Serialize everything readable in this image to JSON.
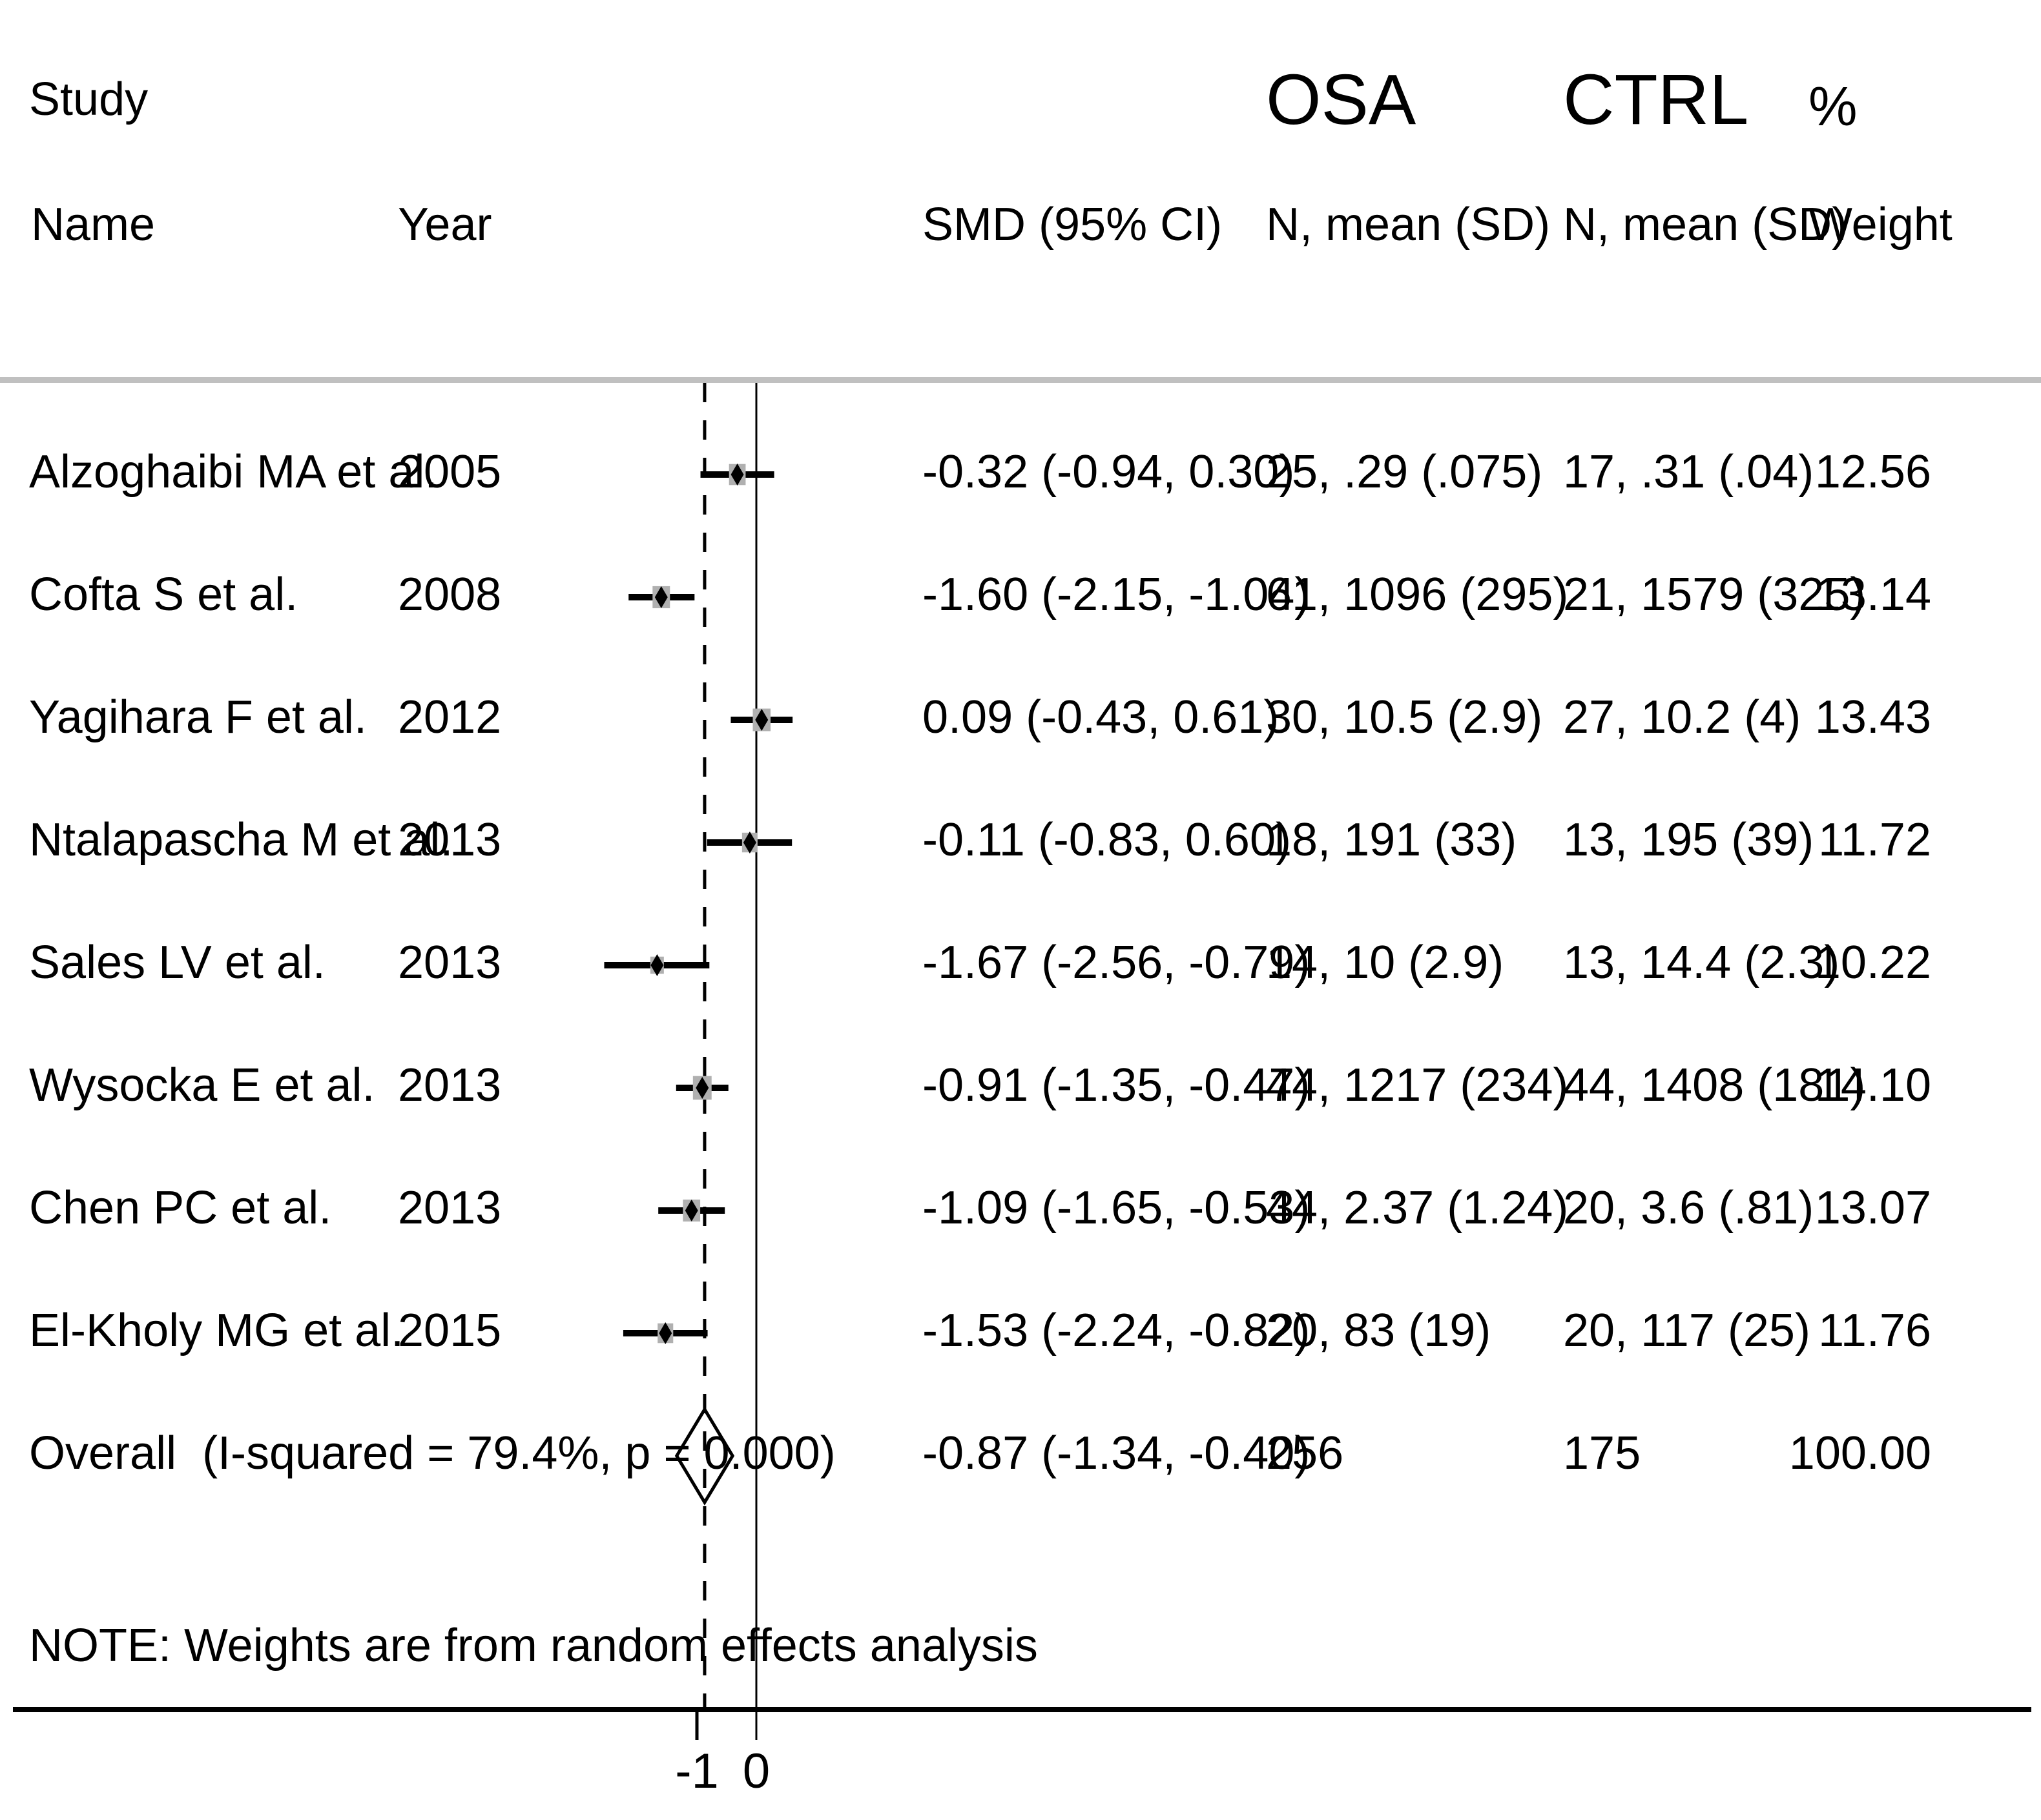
{
  "figure": {
    "headers": {
      "study": "Study",
      "name": "Name",
      "year": "Year",
      "smd": "SMD (95% CI)",
      "osa_group": "OSA",
      "ctrl_group": "CTRL",
      "osa_sub": "N, mean (SD)",
      "ctrl_sub": "N, mean (SD)",
      "pct": "%",
      "weight": "Weight"
    },
    "note": "NOTE: Weights are from random effects analysis"
  },
  "chart_data": {
    "type": "forest",
    "title": "",
    "effect_measure": "SMD (95% CI)",
    "x_axis": {
      "tick_values": [
        -1,
        0
      ],
      "tick_labels": [
        "-1",
        "0"
      ],
      "zero_line": 0,
      "overall_dashed_line": -0.87
    },
    "legend_position": "none",
    "grid": false,
    "studies": [
      {
        "name": "Alzoghaibi MA et al.",
        "year": "2005",
        "smd": -0.32,
        "ci_low": -0.94,
        "ci_high": 0.3,
        "smd_label": "-0.32 (-0.94, 0.30)",
        "osa": "25, .29 (.075)",
        "ctrl": "17, .31 (.04)",
        "weight": 12.56,
        "weight_label": "12.56"
      },
      {
        "name": "Cofta S et al.",
        "year": "2008",
        "smd": -1.6,
        "ci_low": -2.15,
        "ci_high": -1.04,
        "smd_label": "-1.60 (-2.15, -1.04)",
        "osa": "61, 1096 (295)",
        "ctrl": "21, 1579 (325)",
        "weight": 13.14,
        "weight_label": "13.14"
      },
      {
        "name": "Yagihara F et al.",
        "year": "2012",
        "smd": 0.09,
        "ci_low": -0.43,
        "ci_high": 0.61,
        "smd_label": "0.09 (-0.43, 0.61)",
        "osa": "30, 10.5 (2.9)",
        "ctrl": "27, 10.2 (4)",
        "weight": 13.43,
        "weight_label": "13.43"
      },
      {
        "name": "Ntalapascha M et al.",
        "year": "2013",
        "smd": -0.11,
        "ci_low": -0.83,
        "ci_high": 0.6,
        "smd_label": "-0.11 (-0.83, 0.60)",
        "osa": "18, 191 (33)",
        "ctrl": "13, 195 (39)",
        "weight": 11.72,
        "weight_label": "11.72"
      },
      {
        "name": "Sales LV et al.",
        "year": "2013",
        "smd": -1.67,
        "ci_low": -2.56,
        "ci_high": -0.79,
        "smd_label": "-1.67 (-2.56, -0.79)",
        "osa": "14, 10 (2.9)",
        "ctrl": "13, 14.4 (2.3)",
        "weight": 10.22,
        "weight_label": "10.22"
      },
      {
        "name": "Wysocka E et al.",
        "year": "2013",
        "smd": -0.91,
        "ci_low": -1.35,
        "ci_high": -0.47,
        "smd_label": "-0.91 (-1.35, -0.47)",
        "osa": "44, 1217 (234)",
        "ctrl": "44, 1408 (181)",
        "weight": 14.1,
        "weight_label": "14.10"
      },
      {
        "name": "Chen PC et al.",
        "year": "2013",
        "smd": -1.09,
        "ci_low": -1.65,
        "ci_high": -0.53,
        "smd_label": "-1.09 (-1.65, -0.53)",
        "osa": "44, 2.37 (1.24)",
        "ctrl": "20, 3.6 (.81)",
        "weight": 13.07,
        "weight_label": "13.07"
      },
      {
        "name": "El-Kholy MG et al.",
        "year": "2015",
        "smd": -1.53,
        "ci_low": -2.24,
        "ci_high": -0.82,
        "smd_label": "-1.53 (-2.24, -0.82)",
        "osa": "20, 83 (19)",
        "ctrl": "20, 117 (25)",
        "weight": 11.76,
        "weight_label": "11.76"
      }
    ],
    "overall": {
      "name": "Overall  (I-squared = 79.4%, p = 0.000)",
      "smd": -0.87,
      "ci_low": -1.34,
      "ci_high": -0.4,
      "smd_label": "-0.87 (-1.34, -0.40)",
      "osa": "256",
      "ctrl": "175",
      "weight_label": "100.00"
    }
  }
}
